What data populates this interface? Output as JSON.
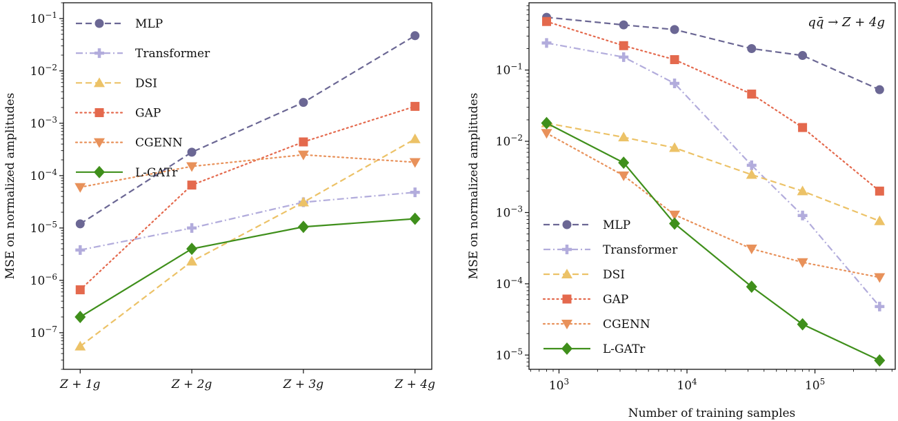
{
  "chart_data": [
    {
      "type": "line",
      "title": "",
      "xlabel": "",
      "ylabel": "MSE on normalized amplitudes",
      "x_scale": "categorical",
      "y_scale": "log",
      "categories": [
        "Z + 1g",
        "Z + 2g",
        "Z + 3g",
        "Z + 4g"
      ],
      "ylim": [
        2e-08,
        0.2
      ],
      "y_ticks": [
        1e-07,
        1e-06,
        1e-05,
        0.0001,
        0.001,
        0.01,
        0.1
      ],
      "y_tick_labels": [
        "10|−7",
        "10|−6",
        "10|−5",
        "10|−4",
        "10|−3",
        "10|−2",
        "10|−1"
      ],
      "grid": false,
      "legend_position": "top-left",
      "series": [
        {
          "name": "MLP",
          "values": [
            1.2e-05,
            0.00028,
            0.0025,
            0.047
          ]
        },
        {
          "name": "Transformer",
          "values": [
            3.8e-06,
            1e-05,
            3.1e-05,
            4.8e-05
          ]
        },
        {
          "name": "DSI",
          "values": [
            5.5e-08,
            2.3e-06,
            3.1e-05,
            0.0005
          ]
        },
        {
          "name": "GAP",
          "values": [
            6.6e-07,
            6.6e-05,
            0.00044,
            0.0021
          ]
        },
        {
          "name": "CGENN",
          "values": [
            6e-05,
            0.00015,
            0.00025,
            0.00018
          ]
        },
        {
          "name": "L-GATr",
          "values": [
            2e-07,
            4e-06,
            1.05e-05,
            1.5e-05
          ]
        }
      ]
    },
    {
      "type": "line",
      "title": "",
      "annotation": "qq̄ → Z + 4g",
      "xlabel": "Number of training samples",
      "ylabel": "MSE on normalized amplitudes",
      "x_scale": "log",
      "y_scale": "log",
      "x": [
        800,
        3200,
        8000,
        32000,
        80000,
        320000
      ],
      "xlim": [
        583,
        424000
      ],
      "ylim": [
        6.3e-06,
        0.88
      ],
      "x_ticks": [
        1000,
        10000,
        100000
      ],
      "x_tick_labels": [
        "10|3",
        "10|4",
        "10|5"
      ],
      "y_ticks": [
        1e-05,
        0.0001,
        0.001,
        0.01,
        0.1
      ],
      "y_tick_labels": [
        "10|−5",
        "10|−4",
        "10|−3",
        "10|−2",
        "10|−1"
      ],
      "grid": false,
      "legend_position": "bottom-left",
      "series": [
        {
          "name": "MLP",
          "values": [
            0.55,
            0.43,
            0.37,
            0.2,
            0.16,
            0.053
          ]
        },
        {
          "name": "Transformer",
          "values": [
            0.24,
            0.152,
            0.065,
            0.0046,
            0.00091,
            4.8e-05
          ]
        },
        {
          "name": "DSI",
          "values": [
            0.018,
            0.0114,
            0.0081,
            0.0034,
            0.002,
            0.00076
          ]
        },
        {
          "name": "GAP",
          "values": [
            0.48,
            0.22,
            0.14,
            0.046,
            0.0156,
            0.002
          ]
        },
        {
          "name": "CGENN",
          "values": [
            0.013,
            0.0033,
            0.00093,
            0.00031,
            0.0002,
            0.000123
          ]
        },
        {
          "name": "L-GATr",
          "values": [
            0.018,
            0.005,
            0.0007,
            9.1e-05,
            2.7e-05,
            8.4e-06
          ]
        }
      ]
    }
  ],
  "styles": {
    "MLP": {
      "color": "#6b6794",
      "marker": "circle",
      "dash": "dashed"
    },
    "Transformer": {
      "color": "#b2acdc",
      "marker": "plus",
      "dash": "dashdot"
    },
    "DSI": {
      "color": "#ecc267",
      "marker": "triangle-up",
      "dash": "dashed"
    },
    "GAP": {
      "color": "#e4694d",
      "marker": "square",
      "dash": "dotted"
    },
    "CGENN": {
      "color": "#e8915a",
      "marker": "triangle-down",
      "dash": "dotted"
    },
    "L-GATr": {
      "color": "#3f8f1b",
      "marker": "diamond",
      "dash": "solid"
    }
  }
}
